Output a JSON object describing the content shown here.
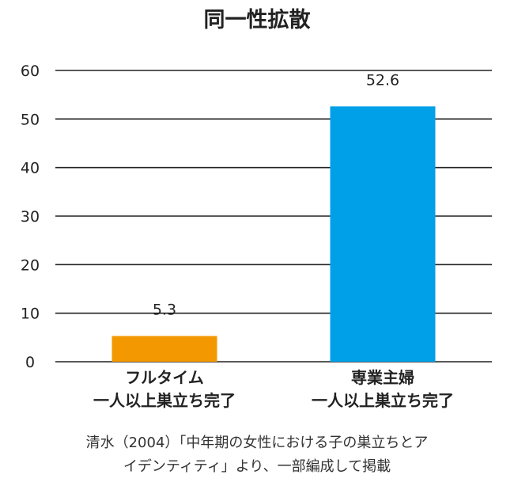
{
  "chart_data": {
    "type": "bar",
    "title": "同一性拡散",
    "categories": [
      [
        "フルタイム",
        "一人以上巣立ち完了"
      ],
      [
        "専業主婦",
        "一人以上巣立ち完了"
      ]
    ],
    "values": [
      5.3,
      52.6
    ],
    "value_labels": [
      "5.3",
      "52.6"
    ],
    "bar_colors": [
      "#f39800",
      "#00a0e9"
    ],
    "ylim": [
      0,
      60
    ],
    "yticks": [
      0,
      10,
      20,
      30,
      40,
      50,
      60
    ],
    "ytick_labels": [
      "0",
      "10",
      "20",
      "30",
      "40",
      "50",
      "60"
    ],
    "xlabel": "",
    "ylabel": "",
    "grid": true,
    "legend": "none"
  },
  "source": {
    "line1": "清水（2004）「中年期の女性における子の巣立ちとア",
    "line2": "イデンティティ」より、一部編成して掲載"
  }
}
